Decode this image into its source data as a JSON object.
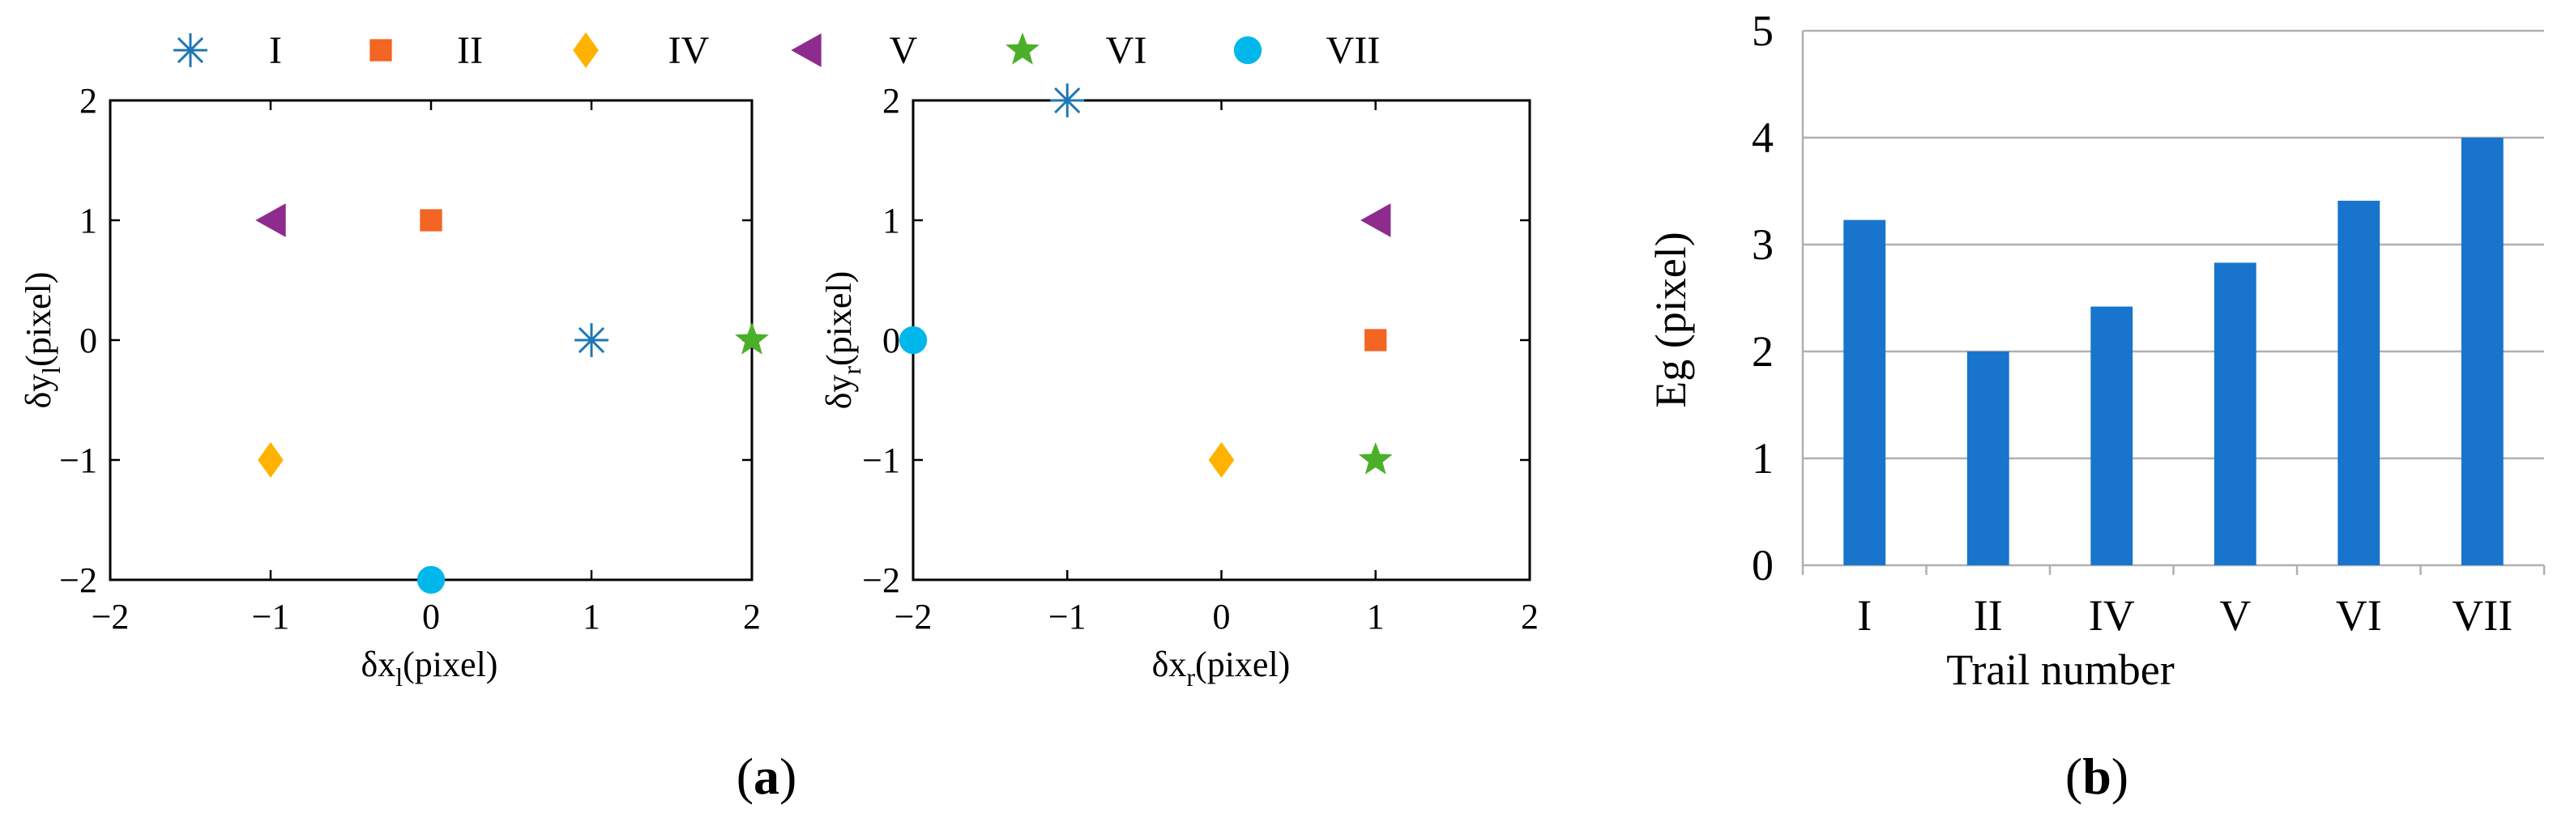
{
  "legend": {
    "items": [
      {
        "label": "I",
        "marker": "asterisk",
        "color": "#1f77b4"
      },
      {
        "label": "II",
        "marker": "square",
        "color": "#f26522"
      },
      {
        "label": "IV",
        "marker": "diamond",
        "color": "#ffb300"
      },
      {
        "label": "V",
        "marker": "triangle-left",
        "color": "#8e2c8e"
      },
      {
        "label": "VI",
        "marker": "star",
        "color": "#4caf2a"
      },
      {
        "label": "VII",
        "marker": "circle",
        "color": "#00b7eb"
      }
    ]
  },
  "panel_labels": {
    "a": "(a)",
    "b": "(b)"
  },
  "chart_data": [
    {
      "type": "scatter",
      "xlabel_main": "δx",
      "xlabel_sub": "l",
      "xlabel_unit": "(pixel)",
      "ylabel_main": "δy",
      "ylabel_sub": "l",
      "ylabel_unit": "(pixel)",
      "xlim": [
        -2,
        2
      ],
      "ylim": [
        -2,
        2
      ],
      "xticks": [
        -2,
        -1,
        0,
        1,
        2
      ],
      "yticks": [
        -2,
        -1,
        0,
        1,
        2
      ],
      "xtick_labels": [
        "−2",
        "−1",
        "0",
        "1",
        "2"
      ],
      "ytick_labels": [
        "−2",
        "−1",
        "0",
        "1",
        "2"
      ],
      "series": [
        {
          "name": "I",
          "x": 1,
          "y": 0
        },
        {
          "name": "II",
          "x": 0,
          "y": 1
        },
        {
          "name": "IV",
          "x": -1,
          "y": -1
        },
        {
          "name": "V",
          "x": -1,
          "y": 1
        },
        {
          "name": "VI",
          "x": 2,
          "y": 0
        },
        {
          "name": "VII",
          "x": 0,
          "y": -2
        }
      ]
    },
    {
      "type": "scatter",
      "xlabel_main": "δx",
      "xlabel_sub": "r",
      "xlabel_unit": "(pixel)",
      "ylabel_main": "δy",
      "ylabel_sub": "r",
      "ylabel_unit": "(pixel)",
      "xlim": [
        -2,
        2
      ],
      "ylim": [
        -2,
        2
      ],
      "xticks": [
        -2,
        -1,
        0,
        1,
        2
      ],
      "yticks": [
        -2,
        -1,
        0,
        1,
        2
      ],
      "xtick_labels": [
        "−2",
        "−1",
        "0",
        "1",
        "2"
      ],
      "ytick_labels": [
        "−2",
        "−1",
        "0",
        "1",
        "2"
      ],
      "series": [
        {
          "name": "I",
          "x": -1,
          "y": 2
        },
        {
          "name": "II",
          "x": 1,
          "y": 0
        },
        {
          "name": "IV",
          "x": 0,
          "y": -1
        },
        {
          "name": "V",
          "x": 1,
          "y": 1
        },
        {
          "name": "VI",
          "x": 1,
          "y": -1
        },
        {
          "name": "VII",
          "x": -2,
          "y": 0
        }
      ]
    },
    {
      "type": "bar",
      "categories": [
        "I",
        "II",
        "IV",
        "V",
        "VI",
        "VII"
      ],
      "values": [
        3.23,
        2.0,
        2.42,
        2.83,
        3.41,
        4.0
      ],
      "xlabel": "Trail number",
      "ylabel": "Eg (pixel)",
      "ylim": [
        0,
        5
      ],
      "yticks": [
        0,
        1,
        2,
        3,
        4,
        5
      ],
      "bar_color": "#1874cd",
      "grid": true
    }
  ]
}
